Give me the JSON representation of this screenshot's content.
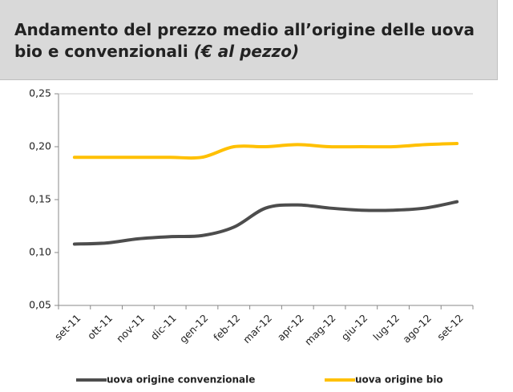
{
  "chart_data": {
    "type": "line",
    "title": "Andamento del prezzo medio all’origine delle uova bio e convenzionali",
    "title_unit": "(€ al pezzo)",
    "categories": [
      "set-11",
      "ott-11",
      "nov-11",
      "dic-11",
      "gen-12",
      "feb-12",
      "mar-12",
      "apr-12",
      "mag-12",
      "giu-12",
      "lug-12",
      "ago-12",
      "set-12"
    ],
    "series": [
      {
        "name": "uova origine convenzionale",
        "color": "#4d4d4d",
        "values": [
          0.108,
          0.109,
          0.113,
          0.115,
          0.116,
          0.124,
          0.142,
          0.145,
          0.142,
          0.14,
          0.14,
          0.142,
          0.148
        ]
      },
      {
        "name": "uova origine bio",
        "color": "#ffc000",
        "values": [
          0.19,
          0.19,
          0.19,
          0.19,
          0.19,
          0.2,
          0.2,
          0.202,
          0.2,
          0.2,
          0.2,
          0.202,
          0.203
        ]
      }
    ],
    "ylim": [
      0.05,
      0.25
    ],
    "yticks": [
      {
        "value": 0.05,
        "label": "0,05"
      },
      {
        "value": 0.1,
        "label": "0,10"
      },
      {
        "value": 0.15,
        "label": "0,15"
      },
      {
        "value": 0.2,
        "label": "0,20"
      },
      {
        "value": 0.25,
        "label": "0,25"
      }
    ],
    "grid": false
  }
}
